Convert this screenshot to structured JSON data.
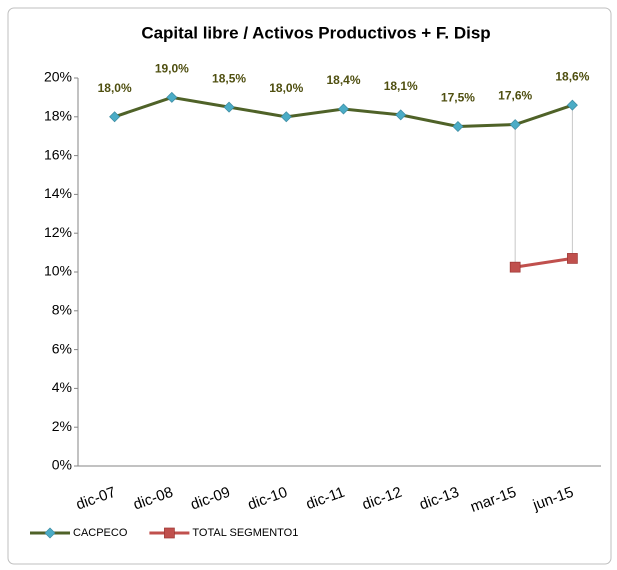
{
  "chart_data": {
    "type": "line",
    "title": "Capital libre / Activos Productivos + F. Disp",
    "categories": [
      "dic-07",
      "dic-08",
      "dic-09",
      "dic-10",
      "dic-11",
      "dic-12",
      "dic-13",
      "mar-15",
      "jun-15"
    ],
    "series": [
      {
        "name": "CACPECO",
        "color": "#4f6228",
        "marker_color": "#4bacc6",
        "marker": "diamond",
        "values": [
          18.0,
          19.0,
          18.5,
          18.0,
          18.4,
          18.1,
          17.5,
          17.6,
          18.6
        ],
        "value_labels": [
          "18,0%",
          "19,0%",
          "18,5%",
          "18,0%",
          "18,4%",
          "18,1%",
          "17,5%",
          "17,6%",
          "18,6%"
        ]
      },
      {
        "name": "TOTAL SEGMENTO1",
        "color": "#c0504d",
        "marker_color": "#c0504d",
        "marker": "square",
        "values": [
          null,
          null,
          null,
          null,
          null,
          null,
          null,
          10.25,
          10.7
        ]
      }
    ],
    "ylim": [
      0,
      20
    ],
    "yticks": [
      {
        "value": 0,
        "label": "0%"
      },
      {
        "value": 2,
        "label": "2%"
      },
      {
        "value": 4,
        "label": "4%"
      },
      {
        "value": 6,
        "label": "6%"
      },
      {
        "value": 8,
        "label": "8%"
      },
      {
        "value": 10,
        "label": "10%"
      },
      {
        "value": 12,
        "label": "12%"
      },
      {
        "value": 14,
        "label": "14%"
      },
      {
        "value": 16,
        "label": "16%"
      },
      {
        "value": 18,
        "label": "18%"
      },
      {
        "value": 20,
        "label": "20%"
      }
    ],
    "grid": false,
    "drop_lines": true,
    "legend": "bottom"
  }
}
